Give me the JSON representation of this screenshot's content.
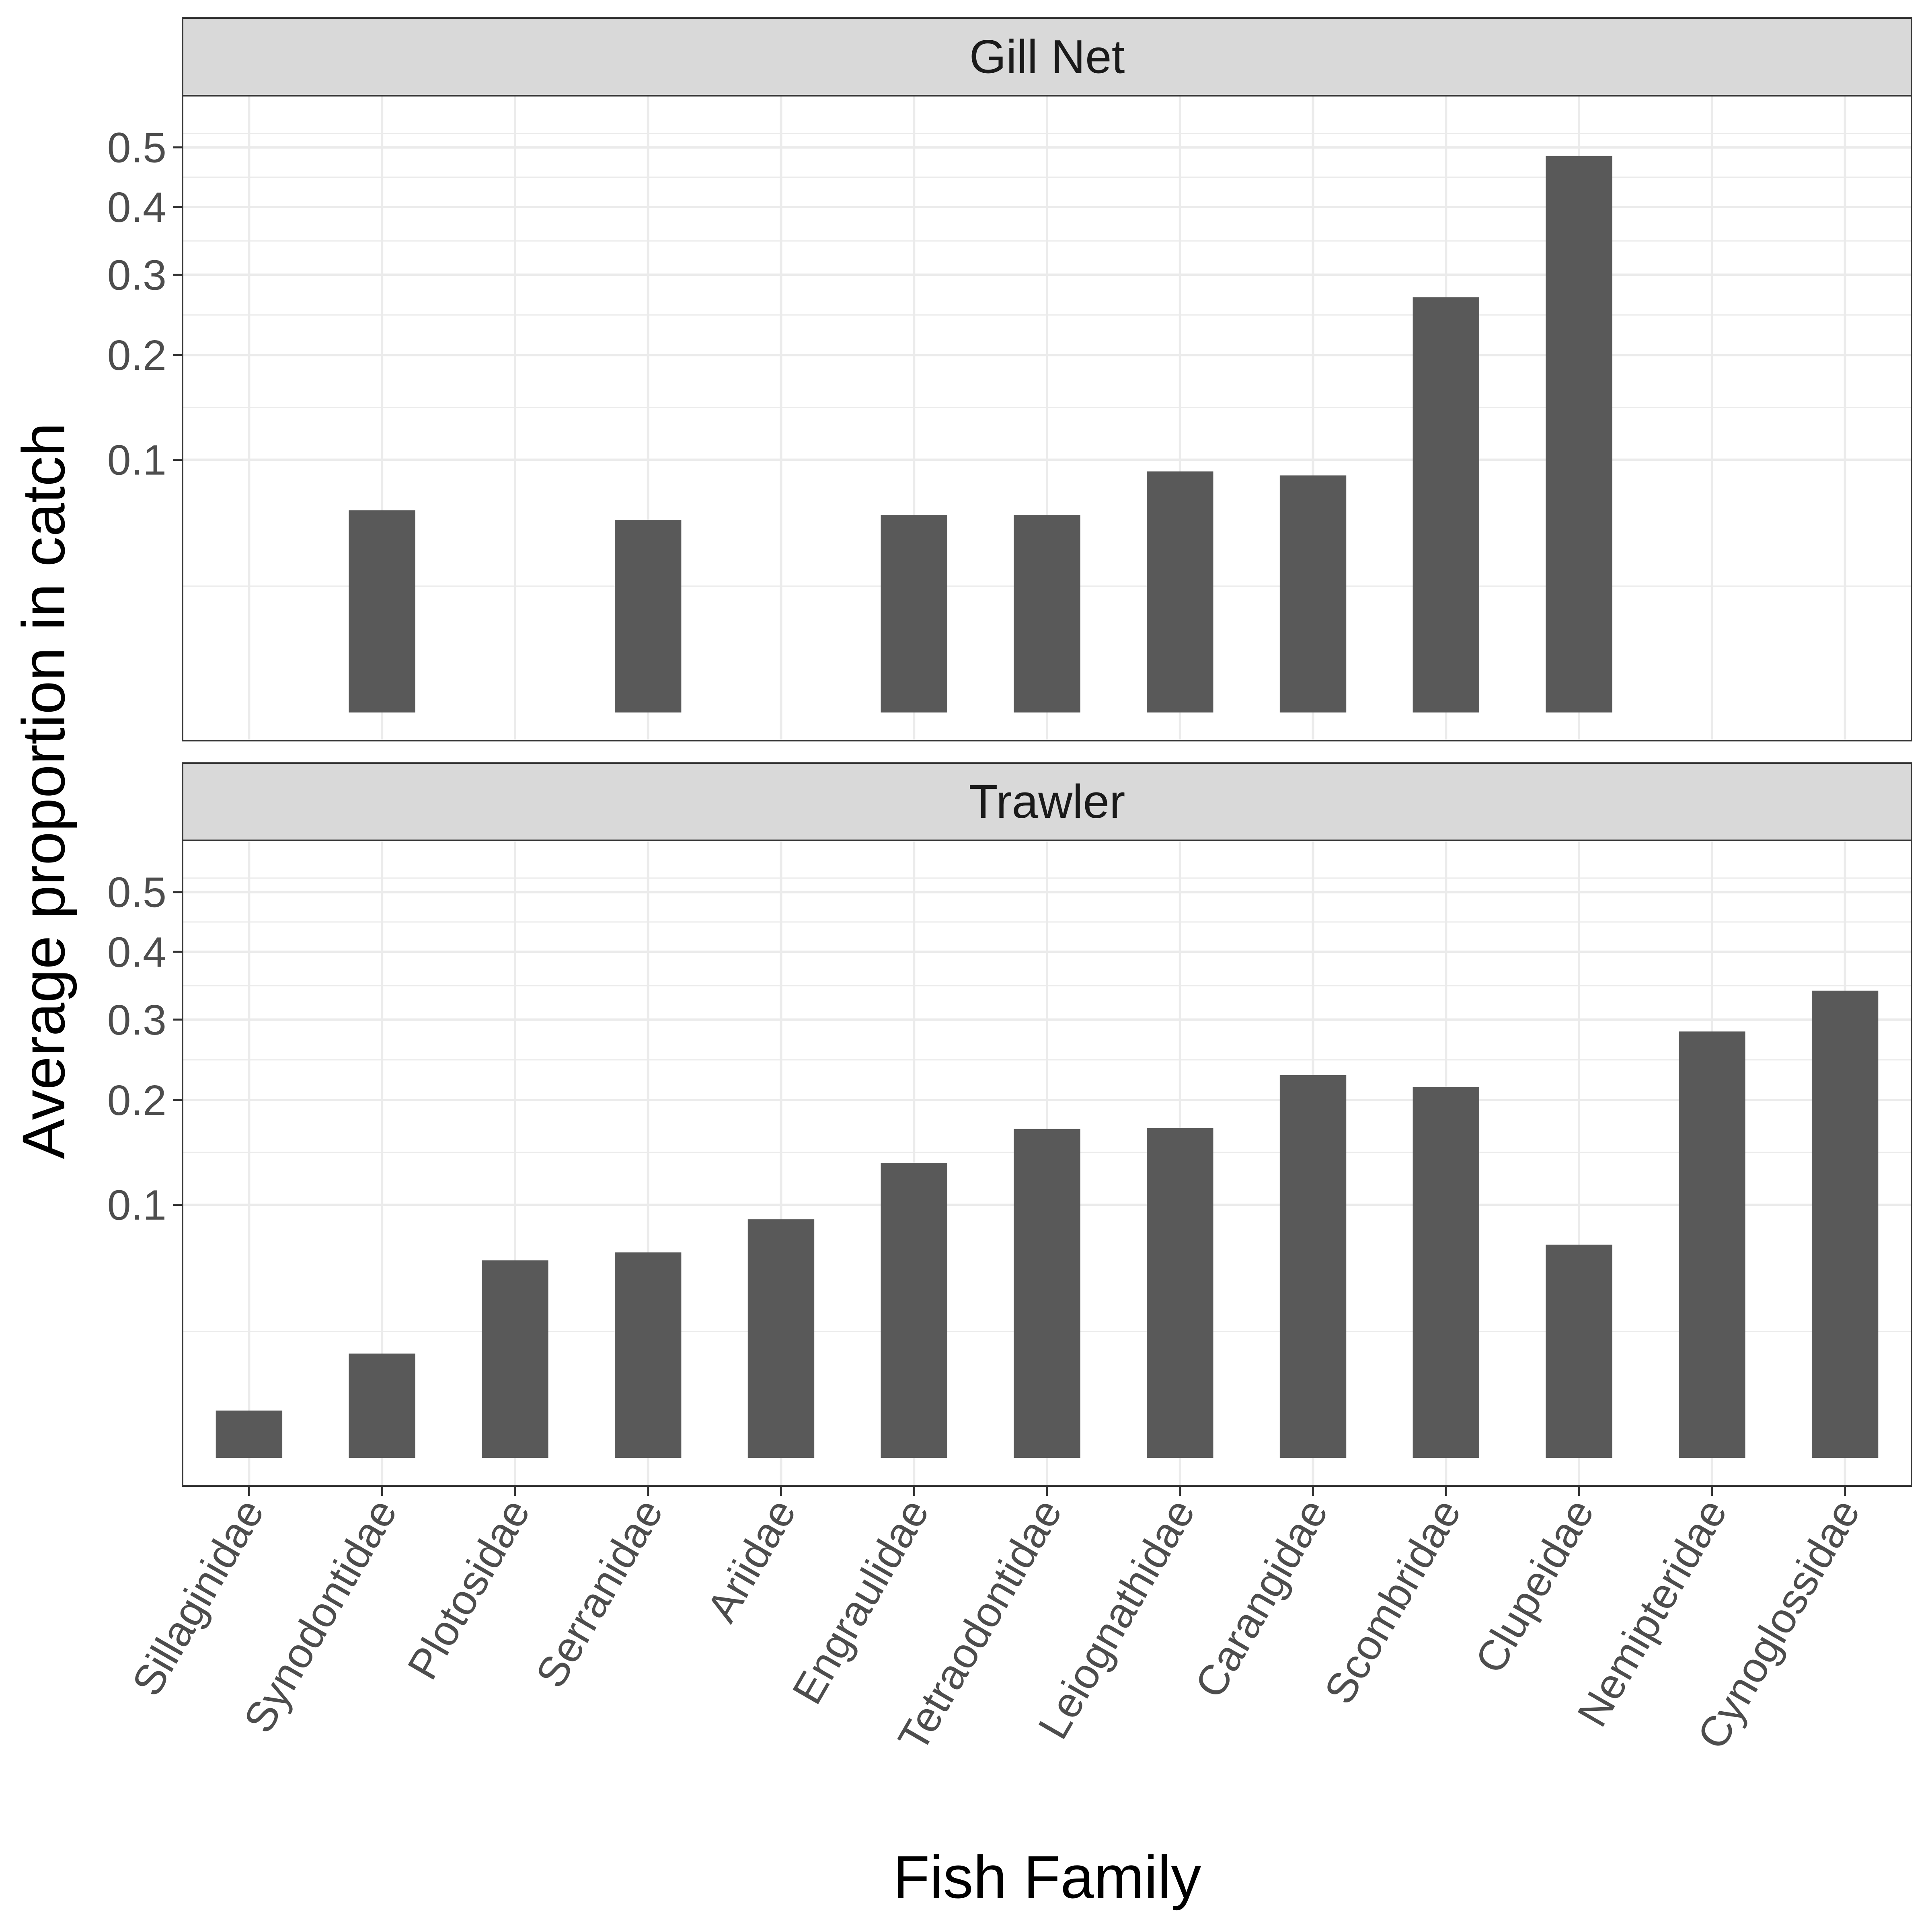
{
  "chart_data": {
    "type": "bar",
    "facet": "vertical",
    "scale": "sqrt",
    "xlabel": "Fish Family",
    "ylabel": "Average proportion in catch",
    "ylim": [
      0,
      0.55
    ],
    "yticks": [
      0.1,
      0.2,
      0.3,
      0.4,
      0.5
    ],
    "ytick_labels": [
      "0.1",
      "0.2",
      "0.3",
      "0.4",
      "0.5"
    ],
    "grid": true,
    "categories": [
      "Sillaginidae",
      "Synodontidae",
      "Plotosidae",
      "Serranidae",
      "Ariidae",
      "Engraulidae",
      "Tetraodontidae",
      "Leiognathidae",
      "Carangidae",
      "Scombridae",
      "Clupeidae",
      "Nemipteridae",
      "Cynoglossidae"
    ],
    "panels": [
      {
        "name": "Gill Net",
        "values": [
          null,
          0.064,
          null,
          0.058,
          null,
          0.061,
          0.061,
          0.091,
          0.088,
          0.27,
          0.485,
          null,
          null
        ]
      },
      {
        "name": "Trawler",
        "values": [
          0.0035,
          0.017,
          0.061,
          0.066,
          0.089,
          0.136,
          0.169,
          0.17,
          0.229,
          0.215,
          0.071,
          0.284,
          0.341
        ]
      }
    ]
  },
  "colors": {
    "bar": "#595959",
    "grid": "#ebebeb",
    "strip_fill": "#d9d9d9",
    "panel_border": "#333333"
  }
}
